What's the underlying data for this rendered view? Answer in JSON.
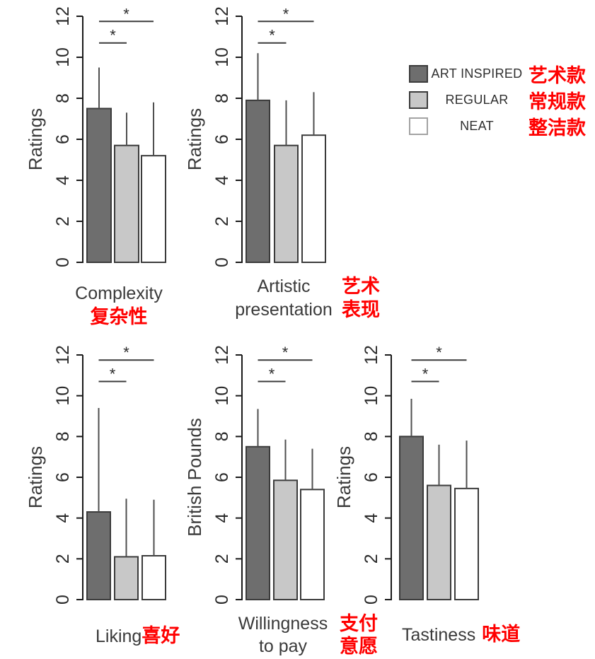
{
  "colors": {
    "art_inspired": "#6e6e6e",
    "regular": "#c8c8c8",
    "neat": "#ffffff",
    "bar_border": "#3b3b3b",
    "neat_legend_border": "#a3a3a3",
    "whisker": "#4f4f4f",
    "axis": "#1a1a1a",
    "text": "#2b2b2b",
    "label_text": "#3a3a3a",
    "annotation_red": "#ff0000",
    "significance": "#3b3b3b"
  },
  "legend": {
    "items": [
      {
        "label": "ART INSPIRED",
        "label_zh": "艺术款",
        "swatch": "art_inspired"
      },
      {
        "label": "REGULAR",
        "label_zh": "常规款",
        "swatch": "regular"
      },
      {
        "label": "NEAT",
        "label_zh": "整洁款",
        "swatch": "neat"
      }
    ]
  },
  "chart_data": [
    {
      "id": "complexity",
      "type": "bar",
      "ylabel": "Ratings",
      "ylim": [
        0,
        12
      ],
      "yticks": [
        0,
        2,
        4,
        6,
        8,
        10,
        12
      ],
      "categories": [
        "ART INSPIRED",
        "REGULAR",
        "NEAT"
      ],
      "values": [
        7.5,
        5.7,
        5.2
      ],
      "errors_upper": [
        2.0,
        1.6,
        2.6
      ],
      "significance": [
        {
          "pair": [
            0,
            1
          ],
          "y": 10.7,
          "label": "*"
        },
        {
          "pair": [
            0,
            2
          ],
          "y": 11.75,
          "label": "*"
        }
      ],
      "xlabel": {
        "en_lines": [
          "Complexity"
        ],
        "zh_lines": [
          "复杂性"
        ]
      }
    },
    {
      "id": "artistic-presentation",
      "type": "bar",
      "ylabel": "Ratings",
      "ylim": [
        0,
        12
      ],
      "yticks": [
        0,
        2,
        4,
        6,
        8,
        10,
        12
      ],
      "categories": [
        "ART INSPIRED",
        "REGULAR",
        "NEAT"
      ],
      "values": [
        7.9,
        5.7,
        6.2
      ],
      "errors_upper": [
        2.3,
        2.2,
        2.1
      ],
      "significance": [
        {
          "pair": [
            0,
            1
          ],
          "y": 10.7,
          "label": "*"
        },
        {
          "pair": [
            0,
            2
          ],
          "y": 11.75,
          "label": "*"
        }
      ],
      "xlabel": {
        "en_lines": [
          "Artistic",
          "presentation"
        ],
        "zh_lines": [
          "艺术",
          "表现"
        ]
      }
    },
    {
      "id": "liking",
      "type": "bar",
      "ylabel": "Ratings",
      "ylim": [
        0,
        12
      ],
      "yticks": [
        0,
        2,
        4,
        6,
        8,
        10,
        12
      ],
      "categories": [
        "ART INSPIRED",
        "REGULAR",
        "NEAT"
      ],
      "values": [
        4.3,
        2.1,
        2.15
      ],
      "errors_upper": [
        5.1,
        2.85,
        2.75
      ],
      "significance": [
        {
          "pair": [
            0,
            1
          ],
          "y": 10.7,
          "label": "*"
        },
        {
          "pair": [
            0,
            2
          ],
          "y": 11.75,
          "label": "*"
        }
      ],
      "xlabel": {
        "en_lines": [
          "Liking"
        ],
        "zh_lines": [
          "喜好"
        ]
      }
    },
    {
      "id": "willingness-to-pay",
      "type": "bar",
      "ylabel": "British Pounds",
      "ylim": [
        0,
        12
      ],
      "yticks": [
        0,
        2,
        4,
        6,
        8,
        10,
        12
      ],
      "categories": [
        "ART INSPIRED",
        "REGULAR",
        "NEAT"
      ],
      "values": [
        7.5,
        5.85,
        5.4
      ],
      "errors_upper": [
        1.85,
        2.0,
        2.0
      ],
      "significance": [
        {
          "pair": [
            0,
            1
          ],
          "y": 10.7,
          "label": "*"
        },
        {
          "pair": [
            0,
            2
          ],
          "y": 11.75,
          "label": "*"
        }
      ],
      "xlabel": {
        "en_lines": [
          "Willingness",
          "to pay"
        ],
        "zh_lines": [
          "支付",
          "意愿"
        ]
      }
    },
    {
      "id": "tastiness",
      "type": "bar",
      "ylabel": "Ratings",
      "ylim": [
        0,
        12
      ],
      "yticks": [
        0,
        2,
        4,
        6,
        8,
        10,
        12
      ],
      "categories": [
        "ART INSPIRED",
        "REGULAR",
        "NEAT"
      ],
      "values": [
        8.0,
        5.6,
        5.45
      ],
      "errors_upper": [
        1.85,
        2.0,
        2.35
      ],
      "significance": [
        {
          "pair": [
            0,
            1
          ],
          "y": 10.7,
          "label": "*"
        },
        {
          "pair": [
            0,
            2
          ],
          "y": 11.75,
          "label": "*"
        }
      ],
      "xlabel": {
        "en_lines": [
          "Tastiness"
        ],
        "zh_lines": [
          "味道"
        ]
      }
    }
  ]
}
